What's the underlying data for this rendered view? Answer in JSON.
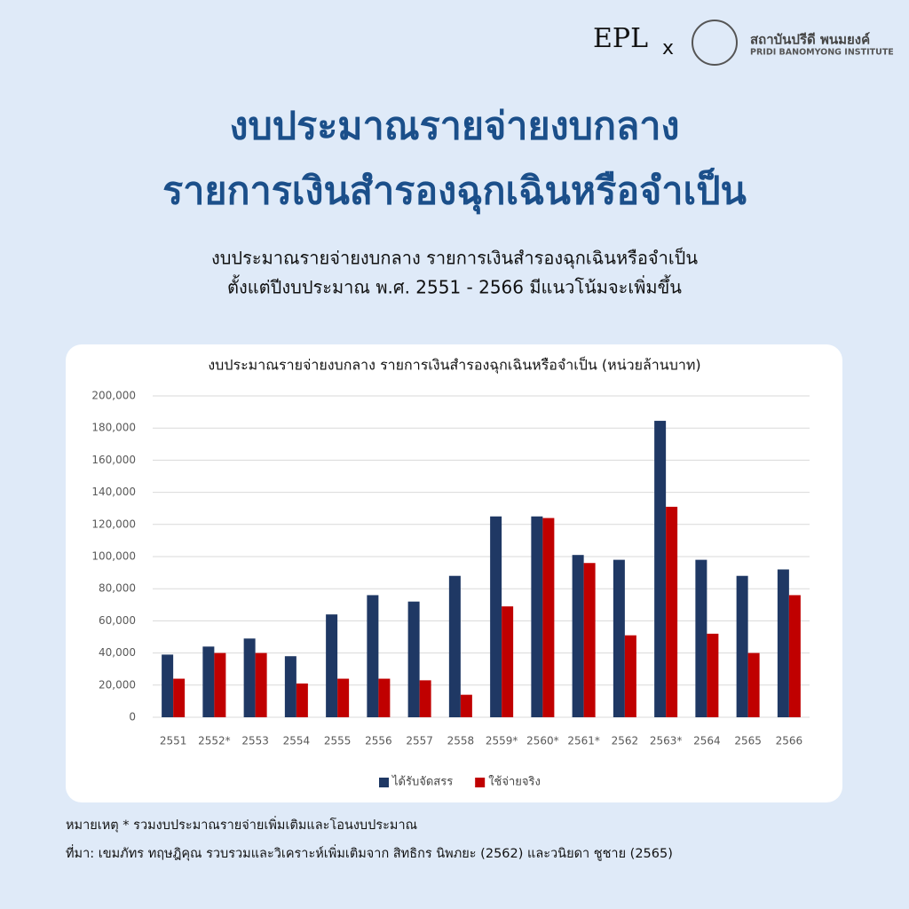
{
  "header": {
    "logo_left": "EPL",
    "separator": "x",
    "institute_th": "สถาบันปรีดี พนมยงค์",
    "institute_en": "PRIDI BANOMYONG INSTITUTE"
  },
  "title": [
    "งบประมาณรายจ่ายงบกลาง",
    "รายการเงินสำรองฉุกเฉินหรือจำเป็น"
  ],
  "subtitle": [
    "งบประมาณรายจ่ายงบกลาง รายการเงินสำรองฉุกเฉินหรือจำเป็น",
    "ตั้งแต่ปีงบประมาณ พ.ศ. 2551 - 2566 มีแนวโน้มจะเพิ่มขึ้น"
  ],
  "chart_data": {
    "type": "bar",
    "title": "งบประมาณรายจ่ายงบกลาง รายการเงินสำรองฉุกเฉินหรือจำเป็น (หน่วยล้านบาท)",
    "categories": [
      "2551",
      "2552*",
      "2553",
      "2554",
      "2555",
      "2556",
      "2557",
      "2558",
      "2559*",
      "2560*",
      "2561*",
      "2562",
      "2563*",
      "2564",
      "2565",
      "2566"
    ],
    "series": [
      {
        "name": "ได้รับจัดสรร",
        "color": "#1f3864",
        "values": [
          39000,
          44000,
          49000,
          38000,
          64000,
          76000,
          72000,
          88000,
          125000,
          125000,
          101000,
          98000,
          184500,
          98000,
          88000,
          92000
        ]
      },
      {
        "name": "ใช้จ่ายจริง",
        "color": "#c00000",
        "values": [
          24000,
          40000,
          40000,
          21000,
          24000,
          24000,
          23000,
          14000,
          69000,
          124000,
          96000,
          51000,
          131000,
          52000,
          40000,
          76000
        ]
      }
    ],
    "ylim": [
      0,
      200000
    ],
    "yticks": [
      0,
      {
        "value": 20000,
        "label": "20,000"
      },
      {
        "value": 40000,
        "label": "40,000"
      },
      {
        "value": 60000,
        "label": "60,000"
      },
      {
        "value": 80000,
        "label": "80,000"
      },
      {
        "value": 100000,
        "label": "100,000"
      },
      {
        "value": 120000,
        "label": "120,000"
      },
      {
        "value": 140000,
        "label": "140,000"
      },
      {
        "value": 160000,
        "label": "160,000"
      },
      {
        "value": 180000,
        "label": "180,000"
      },
      {
        "value": 200000,
        "label": "200,000"
      }
    ],
    "grid": true,
    "legend": "bottom"
  },
  "notes": [
    "หมายเหตุ * รวมงบประมาณรายจ่ายเพิ่มเติมและโอนงบประมาณ",
    "ที่มา: เขมภัทร ทฤษฎิคุณ รวบรวมและวิเคราะห์เพิ่มเติมจาก สิทธิกร นิพภยะ (2562) และวนิยดา ชูชาย (2565)"
  ]
}
